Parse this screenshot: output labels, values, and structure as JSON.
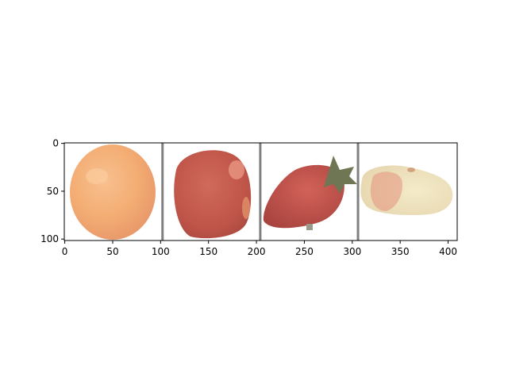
{
  "figure": {
    "x_axis": {
      "range": [
        -0.5,
        409.5
      ],
      "ticks": [
        0,
        50,
        100,
        150,
        200,
        250,
        300,
        350,
        400
      ],
      "labels": [
        "0",
        "50",
        "100",
        "150",
        "200",
        "250",
        "300",
        "350",
        "400"
      ]
    },
    "y_axis": {
      "range": [
        101.5,
        -0.5
      ],
      "ticks": [
        0,
        50,
        100
      ],
      "labels": [
        "0",
        "50",
        "100"
      ],
      "inverted": true
    },
    "separators_x": [
      102,
      204,
      306
    ],
    "tiles": [
      {
        "name": "grapefruit-tile",
        "subject": "orange-grapefruit"
      },
      {
        "name": "tomato-tile",
        "subject": "red-tomato"
      },
      {
        "name": "strawberry-tile",
        "subject": "strawberry"
      },
      {
        "name": "flat-peach-tile",
        "subject": "flat-peach"
      }
    ],
    "colors": {
      "grapefruit": "#f4b27a",
      "tomato": "#c65d50",
      "strawberry": "#c1514e",
      "peach": "#f0e4c0",
      "peach_blush": "#e28a78",
      "separator": "#808080"
    }
  }
}
